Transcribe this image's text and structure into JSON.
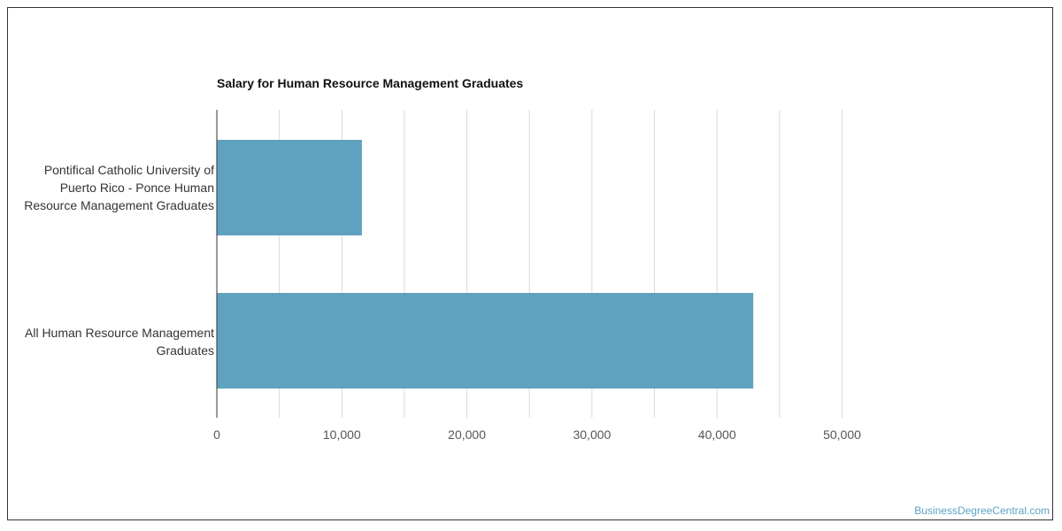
{
  "chart_data": {
    "type": "bar",
    "orientation": "horizontal",
    "title": "Salary for Human Resource Management Graduates",
    "categories": [
      [
        "Pontifical Catholic University of",
        "Puerto Rico - Ponce Human",
        "Resource Management Graduates"
      ],
      [
        "All Human Resource Management",
        "Graduates"
      ]
    ],
    "values": [
      11600,
      42900
    ],
    "xlim": [
      0,
      50000
    ],
    "x_ticks": [
      0,
      10000,
      20000,
      30000,
      40000,
      50000
    ],
    "x_tick_labels": [
      "0",
      "10,000",
      "20,000",
      "30,000",
      "40,000",
      "50,000"
    ],
    "grid": true,
    "bar_color": "#5fa2bf",
    "xlabel": "",
    "ylabel": ""
  },
  "watermark": "BusinessDegreeCentral.com"
}
